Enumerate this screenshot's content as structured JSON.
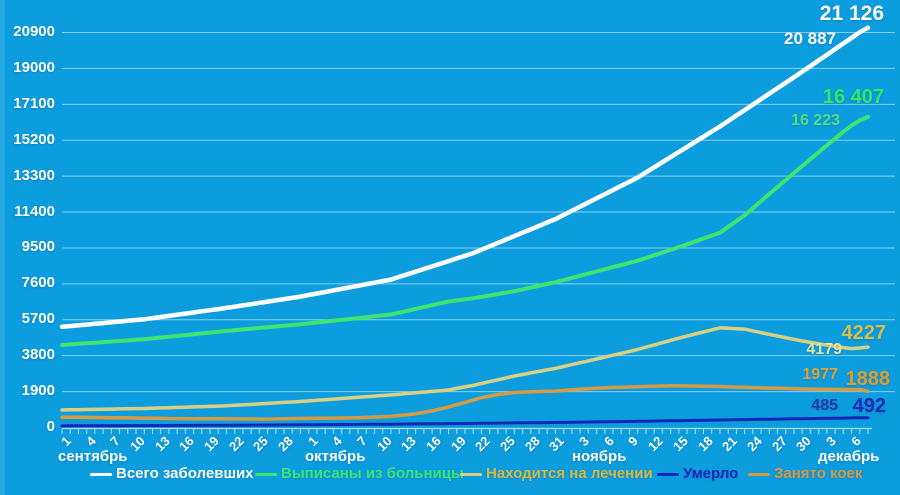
{
  "page": {
    "background_color": "#0C9DDF"
  },
  "chart_data": {
    "type": "line",
    "title": "",
    "grid": true,
    "legend_position": "bottom",
    "y_axis": {
      "min": 0,
      "max": 20900,
      "step": 1900,
      "tick_labels": [
        "0",
        "1900",
        "3800",
        "5700",
        "7600",
        "9500",
        "11400",
        "13300",
        "15200",
        "17100",
        "19000",
        "20900"
      ]
    },
    "x_axis": {
      "total_days": 99,
      "months": [
        {
          "name": "сентябрь",
          "start_index": 0,
          "tick_days": [
            1,
            4,
            7,
            10,
            13,
            16,
            19,
            22,
            25,
            28
          ]
        },
        {
          "name": "октябрь",
          "start_index": 30,
          "tick_days": [
            1,
            4,
            7,
            10,
            13,
            16,
            19,
            22,
            25,
            28,
            31
          ]
        },
        {
          "name": "ноябрь",
          "start_index": 61,
          "tick_days": [
            3,
            6,
            9,
            12,
            15,
            18,
            21,
            24,
            27,
            30
          ]
        },
        {
          "name": "декабрь",
          "start_index": 91,
          "tick_days": [
            3,
            6
          ]
        }
      ]
    },
    "series": [
      {
        "name": "Всего заболевших",
        "color": "#FFFFFF",
        "end_label": "21 126",
        "end_label_color": "#FFFFFF",
        "prev_label": "20 887",
        "prev_label_color": "#FFFFFF",
        "values": [
          5300,
          5340,
          5380,
          5420,
          5460,
          5500,
          5540,
          5580,
          5620,
          5660,
          5700,
          5760,
          5820,
          5880,
          5940,
          6000,
          6060,
          6120,
          6180,
          6240,
          6300,
          6367,
          6433,
          6500,
          6567,
          6633,
          6700,
          6767,
          6833,
          6900,
          6982,
          7064,
          7145,
          7227,
          7309,
          7391,
          7473,
          7555,
          7636,
          7718,
          7800,
          7940,
          8080,
          8220,
          8360,
          8500,
          8640,
          8780,
          8920,
          9060,
          9200,
          9380,
          9560,
          9740,
          9920,
          10100,
          10280,
          10460,
          10640,
          10820,
          11000,
          11220,
          11440,
          11660,
          11880,
          12100,
          12320,
          12540,
          12760,
          12980,
          13200,
          13470,
          13740,
          14010,
          14280,
          14550,
          14820,
          15090,
          15360,
          15630,
          15900,
          16190,
          16480,
          16770,
          17060,
          17350,
          17640,
          17930,
          18220,
          18510,
          18800,
          19098,
          19396,
          19694,
          19993,
          20291,
          20589,
          20887,
          21126
        ]
      },
      {
        "name": "Выписаны из больницы",
        "color": "#3FE36F",
        "end_label": "16 407",
        "end_label_color": "#35E567",
        "prev_label": "16 223",
        "prev_label_color": "#54DC7F",
        "values": [
          4340,
          4370,
          4401,
          4431,
          4462,
          4492,
          4523,
          4553,
          4584,
          4614,
          4645,
          4689,
          4733,
          4777,
          4821,
          4865,
          4909,
          4953,
          4997,
          5041,
          5085,
          5124,
          5163,
          5201,
          5241,
          5279,
          5319,
          5358,
          5396,
          5435,
          5482,
          5529,
          5575,
          5622,
          5669,
          5716,
          5763,
          5809,
          5856,
          5903,
          5950,
          6049,
          6148,
          6247,
          6345,
          6444,
          6543,
          6642,
          6698,
          6754,
          6810,
          6885,
          6960,
          7035,
          7110,
          7185,
          7280,
          7375,
          7470,
          7565,
          7660,
          7774,
          7888,
          8002,
          8116,
          8230,
          8344,
          8458,
          8572,
          8686,
          8800,
          8943,
          9086,
          9229,
          9372,
          9515,
          9668,
          9821,
          9974,
          10127,
          10280,
          10586,
          10893,
          11199,
          11575,
          11952,
          12328,
          12698,
          13069,
          13439,
          13810,
          14175,
          14540,
          14905,
          15262,
          15619,
          15960,
          16223,
          16407
        ]
      },
      {
        "name": "Находится на лечении",
        "color": "#D8D083",
        "end_label": "4227",
        "end_label_color": "#D3BE4E",
        "prev_label": "4179",
        "prev_label_color": "#E7E49C",
        "values": [
          900,
          908,
          916,
          924,
          932,
          940,
          948,
          956,
          964,
          972,
          980,
          994,
          1008,
          1022,
          1036,
          1050,
          1064,
          1078,
          1092,
          1106,
          1120,
          1146,
          1171,
          1197,
          1222,
          1248,
          1273,
          1299,
          1324,
          1350,
          1382,
          1414,
          1445,
          1477,
          1509,
          1541,
          1573,
          1605,
          1636,
          1668,
          1700,
          1737,
          1774,
          1811,
          1849,
          1886,
          1923,
          1960,
          2040,
          2120,
          2200,
          2300,
          2400,
          2500,
          2600,
          2700,
          2780,
          2860,
          2940,
          3020,
          3100,
          3200,
          3300,
          3400,
          3500,
          3600,
          3700,
          3800,
          3900,
          4000,
          4100,
          4220,
          4340,
          4460,
          4580,
          4700,
          4810,
          4920,
          5030,
          5140,
          5250,
          5227,
          5203,
          5180,
          5087,
          4993,
          4900,
          4813,
          4725,
          4638,
          4550,
          4477,
          4403,
          4330,
          4265,
          4200,
          4150,
          4179,
          4227
        ]
      },
      {
        "name": "Умерло",
        "color": "#1726B5",
        "end_label": "492",
        "end_label_color": "#1A2CB8",
        "prev_label": "485",
        "prev_label_color": "#2438AC",
        "values": [
          60,
          62,
          63,
          65,
          66,
          68,
          69,
          71,
          72,
          74,
          75,
          77,
          79,
          81,
          83,
          85,
          87,
          89,
          91,
          93,
          95,
          97,
          99,
          102,
          104,
          106,
          108,
          110,
          113,
          115,
          118,
          121,
          125,
          128,
          131,
          134,
          137,
          141,
          144,
          147,
          150,
          154,
          158,
          162,
          166,
          170,
          174,
          178,
          182,
          186,
          190,
          195,
          200,
          205,
          210,
          215,
          220,
          225,
          230,
          235,
          240,
          246,
          252,
          258,
          264,
          270,
          276,
          282,
          288,
          294,
          300,
          307,
          314,
          321,
          328,
          335,
          342,
          349,
          356,
          363,
          370,
          377,
          384,
          391,
          398,
          405,
          412,
          419,
          426,
          433,
          440,
          446,
          453,
          459,
          466,
          472,
          479,
          485,
          492
        ]
      },
      {
        "name": "Занято коек",
        "color": "#D69A41",
        "end_label": "1888",
        "end_label_color": "#E09C2B",
        "prev_label": "1977",
        "prev_label_color": "#DFA132",
        "values": [
          520,
          516,
          512,
          508,
          504,
          500,
          494,
          488,
          482,
          476,
          470,
          464,
          458,
          452,
          446,
          440,
          438,
          436,
          434,
          432,
          430,
          428,
          426,
          424,
          422,
          420,
          428,
          435,
          443,
          450,
          455,
          460,
          465,
          470,
          477,
          483,
          490,
          508,
          525,
          543,
          560,
          607,
          653,
          700,
          775,
          850,
          955,
          1060,
          1180,
          1300,
          1425,
          1550,
          1635,
          1720,
          1770,
          1820,
          1845,
          1870,
          1880,
          1890,
          1900,
          1933,
          1967,
          2000,
          2027,
          2053,
          2080,
          2093,
          2105,
          2118,
          2130,
          2143,
          2155,
          2168,
          2180,
          2175,
          2170,
          2165,
          2160,
          2148,
          2135,
          2123,
          2110,
          2098,
          2085,
          2073,
          2060,
          2048,
          2035,
          2023,
          2010,
          2003,
          1997,
          1990,
          1987,
          1983,
          1980,
          1977,
          1888
        ]
      }
    ]
  }
}
